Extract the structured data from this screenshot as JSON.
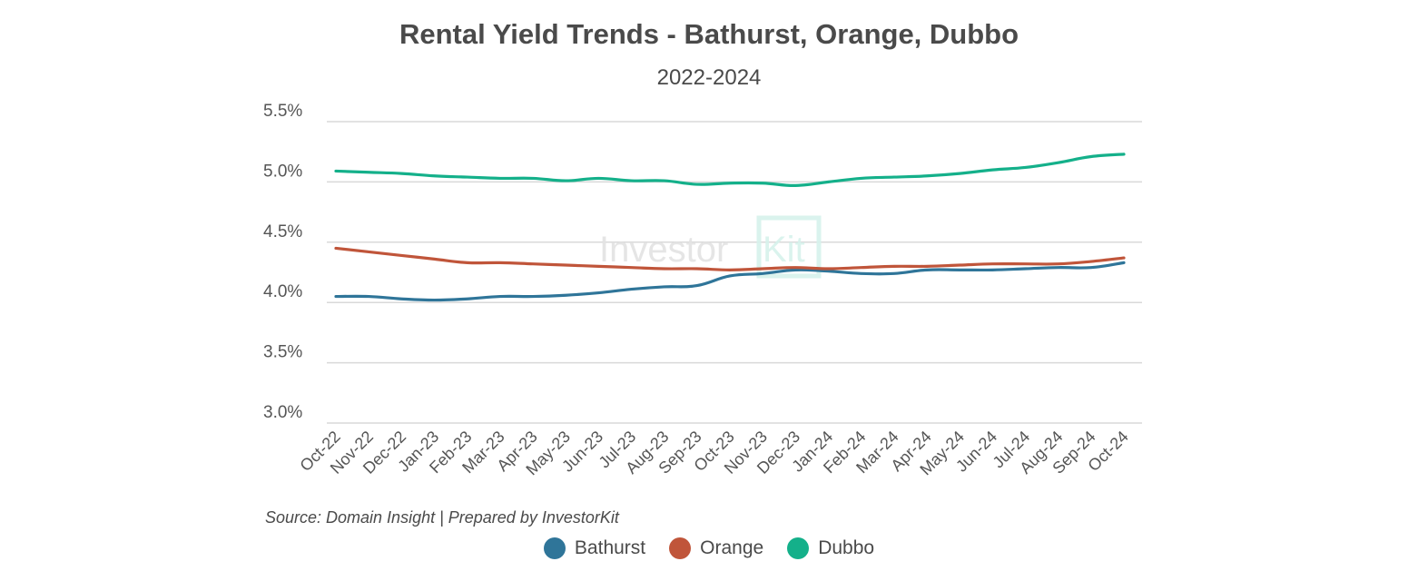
{
  "chart_data": {
    "type": "line",
    "title": "Rental Yield Trends - Bathurst, Orange, Dubbo",
    "subtitle": "2022-2024",
    "xlabel": "",
    "ylabel": "",
    "ylim": [
      3.0,
      5.5
    ],
    "yticks": [
      "3.0%",
      "3.5%",
      "4.0%",
      "4.5%",
      "5.0%",
      "5.5%"
    ],
    "ytick_values": [
      3.0,
      3.5,
      4.0,
      4.5,
      5.0,
      5.5
    ],
    "grid": true,
    "legend_position": "bottom",
    "categories": [
      "Oct-22",
      "Nov-22",
      "Dec-22",
      "Jan-23",
      "Feb-23",
      "Mar-23",
      "Apr-23",
      "May-23",
      "Jun-23",
      "Jul-23",
      "Aug-23",
      "Sep-23",
      "Oct-23",
      "Nov-23",
      "Dec-23",
      "Jan-24",
      "Feb-24",
      "Mar-24",
      "Apr-24",
      "May-24",
      "Jun-24",
      "Jul-24",
      "Aug-24",
      "Sep-24",
      "Oct-24"
    ],
    "series": [
      {
        "name": "Bathurst",
        "color": "#2f7599",
        "values": [
          4.05,
          4.05,
          4.03,
          4.02,
          4.03,
          4.05,
          4.05,
          4.06,
          4.08,
          4.11,
          4.13,
          4.14,
          4.22,
          4.24,
          4.27,
          4.26,
          4.24,
          4.24,
          4.27,
          4.27,
          4.27,
          4.28,
          4.29,
          4.29,
          4.33
        ]
      },
      {
        "name": "Orange",
        "color": "#c0553a",
        "values": [
          4.45,
          4.42,
          4.39,
          4.36,
          4.33,
          4.33,
          4.32,
          4.31,
          4.3,
          4.29,
          4.28,
          4.28,
          4.27,
          4.28,
          4.29,
          4.28,
          4.29,
          4.3,
          4.3,
          4.31,
          4.32,
          4.32,
          4.32,
          4.34,
          4.37
        ]
      },
      {
        "name": "Dubbo",
        "color": "#14b08a",
        "values": [
          5.09,
          5.08,
          5.07,
          5.05,
          5.04,
          5.03,
          5.03,
          5.01,
          5.03,
          5.01,
          5.01,
          4.98,
          4.99,
          4.99,
          4.97,
          5.0,
          5.03,
          5.04,
          5.05,
          5.07,
          5.1,
          5.12,
          5.16,
          5.21,
          5.23
        ]
      }
    ],
    "source": "Source: Domain Insight | Prepared by InvestorKit",
    "watermark": "InvestorKit"
  }
}
